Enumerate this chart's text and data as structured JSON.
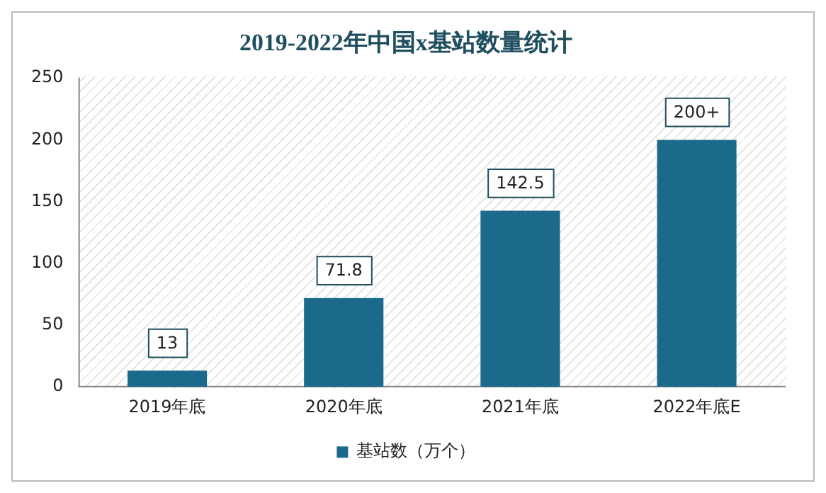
{
  "chart_data": {
    "type": "bar",
    "title": "2019-2022年中国x基站数量统计",
    "categories": [
      "2019年底",
      "2020年底",
      "2021年底",
      "2022年底E"
    ],
    "series": [
      {
        "name": "基站数（万个）",
        "color": "#1b6a8c",
        "values": [
          13,
          71.8,
          142.5,
          200
        ],
        "value_labels": [
          "13",
          "71.8",
          "142.5",
          "200+"
        ]
      }
    ],
    "ylim": [
      0,
      250
    ],
    "yticks": [
      0,
      50,
      100,
      150,
      200,
      250
    ],
    "grid": false,
    "legend": "bottom"
  }
}
